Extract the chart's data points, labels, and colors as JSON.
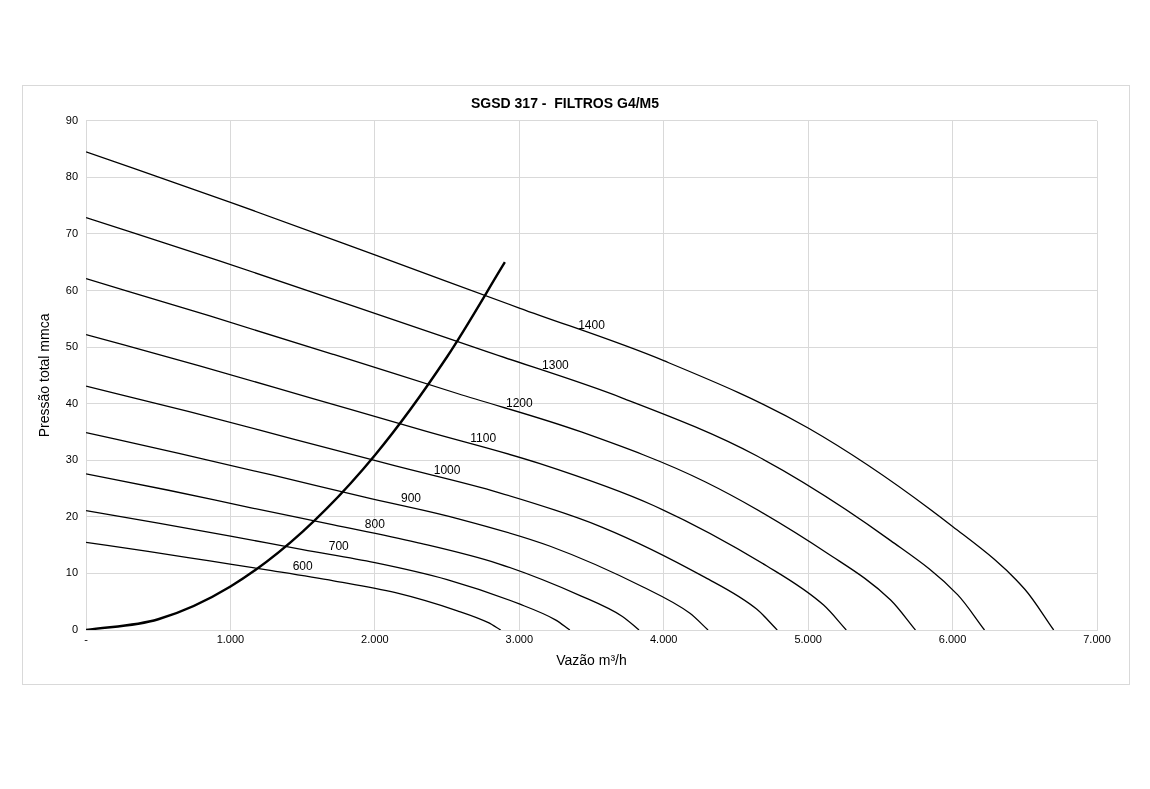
{
  "chart_data": {
    "type": "line",
    "title": "SGSD 317 -  FILTROS G4/M5",
    "xlabel": "Vazão m³/h",
    "ylabel": "Pressão total mmca",
    "xlim": [
      0,
      7000
    ],
    "ylim": [
      0,
      90
    ],
    "xticks": [
      {
        "value": 0,
        "label": "-"
      },
      {
        "value": 1000,
        "label": "1.000"
      },
      {
        "value": 2000,
        "label": "2.000"
      },
      {
        "value": 3000,
        "label": "3.000"
      },
      {
        "value": 4000,
        "label": "4.000"
      },
      {
        "value": 5000,
        "label": "5.000"
      },
      {
        "value": 6000,
        "label": "6.000"
      },
      {
        "value": 7000,
        "label": "7.000"
      }
    ],
    "yticks": [
      0,
      10,
      20,
      30,
      40,
      50,
      60,
      70,
      80,
      90
    ],
    "grid": true,
    "legend": false,
    "marker": "none",
    "line_style": "solid",
    "series": [
      {
        "name": "1400",
        "color": "#000000",
        "x": [
          0,
          1000,
          2000,
          3000,
          4000,
          5000,
          6000,
          6500,
          6700
        ],
        "values": [
          84.5,
          75.6,
          66.3,
          56.9,
          47.6,
          35.7,
          18.3,
          7.2,
          0
        ]
      },
      {
        "name": "1300",
        "color": "#000000",
        "x": [
          0,
          929,
          1857,
          2786,
          3714,
          4643,
          5571,
          6036,
          6221
        ],
        "values": [
          72.9,
          65.2,
          57.2,
          49.1,
          41.0,
          30.8,
          15.8,
          6.2,
          0
        ]
      },
      {
        "name": "1200",
        "color": "#000000",
        "x": [
          0,
          857,
          1714,
          2571,
          3429,
          4286,
          5143,
          5571,
          5743
        ],
        "values": [
          62.1,
          55.5,
          48.7,
          41.8,
          35.0,
          26.2,
          13.4,
          5.3,
          0
        ]
      },
      {
        "name": "1100",
        "color": "#000000",
        "x": [
          0,
          786,
          1571,
          2357,
          3143,
          3929,
          4714,
          5107,
          5264
        ],
        "values": [
          52.2,
          46.7,
          40.9,
          35.1,
          29.4,
          22.0,
          11.3,
          4.4,
          0
        ]
      },
      {
        "name": "1000",
        "color": "#000000",
        "x": [
          0,
          714,
          1429,
          2143,
          2857,
          3571,
          4286,
          4643,
          4786
        ],
        "values": [
          43.1,
          38.6,
          33.8,
          29.0,
          24.3,
          18.2,
          9.3,
          3.7,
          0
        ]
      },
      {
        "name": "900",
        "color": "#000000",
        "x": [
          0,
          643,
          1286,
          1929,
          2571,
          3214,
          3857,
          4179,
          4307
        ],
        "values": [
          34.9,
          31.2,
          27.4,
          23.5,
          19.7,
          14.8,
          7.6,
          3.0,
          0
        ]
      },
      {
        "name": "800",
        "color": "#000000",
        "x": [
          0,
          571,
          1143,
          1714,
          2286,
          2857,
          3429,
          3714,
          3829
        ],
        "values": [
          27.6,
          24.7,
          21.6,
          18.6,
          15.5,
          11.7,
          6.0,
          2.4,
          0
        ]
      },
      {
        "name": "700",
        "color": "#000000",
        "x": [
          0,
          500,
          1000,
          1500,
          2000,
          2500,
          3000,
          3250,
          3350
        ],
        "values": [
          21.1,
          18.9,
          16.6,
          14.2,
          11.9,
          8.9,
          4.6,
          1.8,
          0
        ]
      },
      {
        "name": "600",
        "color": "#000000",
        "x": [
          0,
          429,
          857,
          1286,
          1714,
          2143,
          2571,
          2786,
          2871
        ],
        "values": [
          15.5,
          13.9,
          12.2,
          10.5,
          8.7,
          6.6,
          3.4,
          1.3,
          0
        ]
      },
      {
        "color": "#000000",
        "x": [
          0,
          500,
          1000,
          1500,
          2000,
          2500,
          2900
        ],
        "values": [
          0,
          1.9,
          7.7,
          17.4,
          30.9,
          48.3,
          65.0
        ]
      }
    ]
  }
}
